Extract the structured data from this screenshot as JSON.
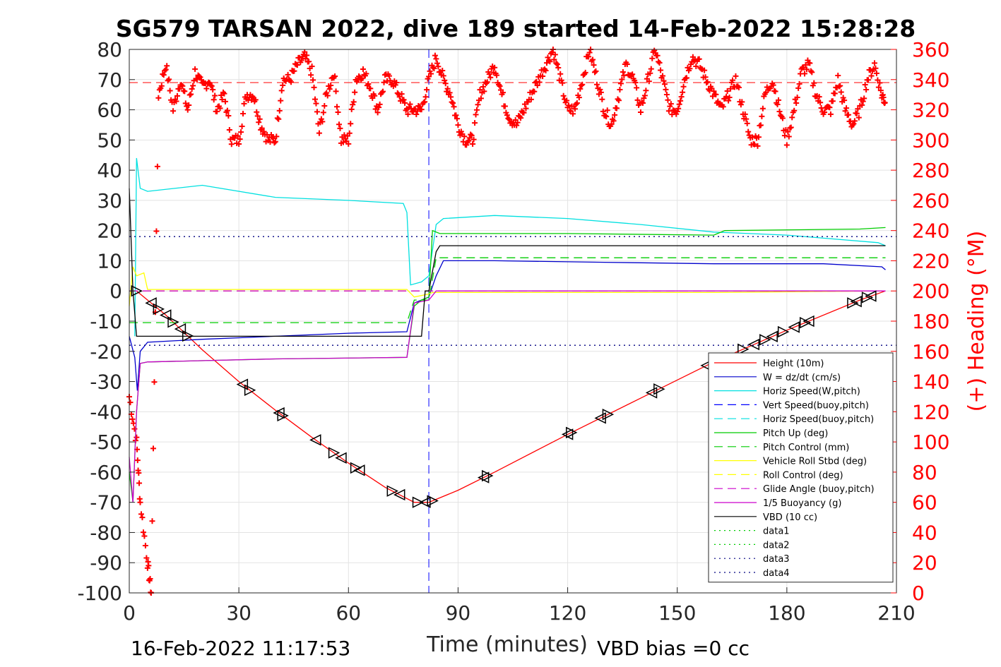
{
  "chart_data": {
    "type": "line",
    "title": "SG579 TARSAN 2022, dive 189 started 14-Feb-2022 15:28:28",
    "xlabel": "Time (minutes)",
    "ylabel_right": "(+) Heading (°M)",
    "xlim": [
      0,
      210
    ],
    "ylim": [
      -100,
      80
    ],
    "ylim_right": [
      0,
      360
    ],
    "xticks": [
      "0",
      "30",
      "60",
      "90",
      "120",
      "150",
      "180",
      "210"
    ],
    "yticks": [
      "80",
      "70",
      "60",
      "50",
      "40",
      "30",
      "20",
      "10",
      "0",
      "-10",
      "-20",
      "-30",
      "-40",
      "-50",
      "-60",
      "-70",
      "-80",
      "-90",
      "-100"
    ],
    "yticks_right": [
      "360",
      "340",
      "320",
      "300",
      "280",
      "260",
      "240",
      "220",
      "200",
      "180",
      "160",
      "140",
      "120",
      "100",
      "80",
      "60",
      "40",
      "20",
      "0"
    ],
    "grid": true,
    "legend_position": "lower-right",
    "footer_left": "16-Feb-2022 11:17:53",
    "footer_right": "VBD bias =0 cc",
    "apogee_time": 82,
    "series": [
      {
        "name": "Height (10m)",
        "color": "#ff0000",
        "style": "solid",
        "x": [
          2,
          10,
          20,
          30,
          40,
          50,
          60,
          70,
          78,
          82,
          90,
          100,
          120,
          140,
          160,
          180,
          200,
          207
        ],
        "y": [
          0,
          -8,
          -19.5,
          -30,
          -39.5,
          -48.5,
          -57,
          -65,
          -70,
          -70,
          -66,
          -60,
          -47.5,
          -35.5,
          -23.5,
          -13,
          -3,
          0
        ]
      },
      {
        "name": "W = dz/dt (cm/s)",
        "color": "#0000cc",
        "style": "solid",
        "x": [
          0,
          1.5,
          2.2,
          3,
          5,
          20,
          40,
          60,
          76,
          78,
          80,
          82,
          84,
          86,
          100,
          130,
          160,
          190,
          206,
          207
        ],
        "y": [
          -15,
          -22,
          -33,
          -20,
          -17,
          -16,
          -15,
          -14,
          -13.5,
          -4,
          -3,
          -2,
          5,
          10,
          10,
          9.5,
          9,
          9,
          8,
          7
        ]
      },
      {
        "name": "Horiz Speed(W,pitch)",
        "color": "#00e0e0",
        "style": "solid",
        "x": [
          1.5,
          2,
          3,
          5,
          20,
          40,
          60,
          75,
          76,
          77,
          80,
          82,
          84,
          86,
          100,
          120,
          140,
          160,
          180,
          205,
          207
        ],
        "y": [
          -15,
          44,
          34,
          33,
          35,
          31,
          30,
          29,
          26,
          2,
          3,
          5,
          22,
          24,
          25,
          24,
          22,
          19.5,
          18.5,
          16,
          15
        ]
      },
      {
        "name": "Vert Speed(buoy,pitch)",
        "color": "#0000ff",
        "style": "dash",
        "x": [],
        "y": []
      },
      {
        "name": "Horiz Speed(buoy,pitch)",
        "color": "#00e0e0",
        "style": "dash",
        "x": [],
        "y": []
      },
      {
        "name": "Pitch Up (deg)",
        "color": "#00cc00",
        "style": "solid",
        "x": [
          0,
          1,
          2,
          3,
          5,
          40,
          76,
          78,
          80,
          82,
          83,
          85,
          120,
          160,
          163,
          200,
          207
        ],
        "y": [
          -60,
          -70,
          -40,
          -24,
          -23.5,
          -22.5,
          -22,
          -5,
          -3,
          -2,
          20,
          19,
          19,
          18.5,
          20,
          20.5,
          21
        ]
      },
      {
        "name": "Pitch Control (mm)",
        "color": "#00cc00",
        "style": "dash",
        "x": [
          0,
          76,
          78,
          82,
          84,
          207
        ],
        "y": [
          -10.5,
          -10.5,
          -3,
          -3,
          11,
          11
        ]
      },
      {
        "name": "Vehicle Roll Stbd (deg)",
        "color": "#ffff00",
        "style": "solid",
        "x": [
          0,
          1,
          2,
          4,
          5,
          30,
          60,
          76,
          78,
          82,
          83,
          120,
          160,
          205,
          207
        ],
        "y": [
          -5,
          8,
          5,
          6,
          0.5,
          0.5,
          0.5,
          0.5,
          -2,
          -1,
          -0.5,
          -0.5,
          -0.5,
          0,
          0
        ]
      },
      {
        "name": "Roll Control (deg)",
        "color": "#ffff00",
        "style": "dash",
        "x": [
          0,
          207
        ],
        "y": [
          0,
          0
        ]
      },
      {
        "name": "Glide Angle (buoy,pitch)",
        "color": "#cc00cc",
        "style": "dash",
        "x": [
          0,
          207
        ],
        "y": [
          0,
          0
        ]
      },
      {
        "name": "1/5 Buoyancy (g)",
        "color": "#cc00cc",
        "style": "solid",
        "x": [
          0,
          1,
          2,
          3,
          5,
          40,
          76,
          78,
          82,
          84,
          207
        ],
        "y": [
          -55,
          -70,
          -40,
          -24,
          -23.5,
          -22.5,
          -22,
          -4,
          -3,
          0,
          0
        ]
      },
      {
        "name": "VBD (10 cc)",
        "color": "#000000",
        "style": "solid",
        "x": [
          0,
          1,
          2,
          80,
          81,
          82,
          84,
          85,
          207
        ],
        "y": [
          34,
          0,
          -15,
          -15,
          0,
          0,
          13,
          15,
          15
        ]
      },
      {
        "name": "data1",
        "color": "#00cc00",
        "style": "dot",
        "x": [],
        "y": []
      },
      {
        "name": "data2",
        "color": "#00cc00",
        "style": "dot",
        "x": [],
        "y": []
      },
      {
        "name": "data3",
        "color": "#000080",
        "style": "dot",
        "x": [
          0,
          210
        ],
        "y": [
          18,
          18
        ]
      },
      {
        "name": "data4",
        "color": "#000080",
        "style": "dot",
        "x": [
          0,
          210
        ],
        "y": [
          -18,
          -18
        ]
      }
    ],
    "heading_reference_deg": 338,
    "heading": {
      "name": "Heading (°M)",
      "color": "#ff0000",
      "x": [
        0,
        2,
        3,
        5,
        6,
        8,
        10,
        12,
        14,
        16,
        18,
        20,
        22,
        24,
        26,
        28,
        30,
        32,
        34,
        36,
        38,
        40,
        42,
        44,
        46,
        48,
        50,
        52,
        54,
        56,
        58,
        60,
        62,
        64,
        66,
        68,
        70,
        72,
        74,
        76,
        78,
        80,
        82,
        84,
        86,
        88,
        90,
        92,
        94,
        96,
        98,
        100,
        102,
        104,
        106,
        108,
        110,
        112,
        114,
        116,
        118,
        120,
        122,
        124,
        126,
        128,
        130,
        132,
        134,
        136,
        138,
        140,
        142,
        144,
        146,
        148,
        150,
        152,
        154,
        156,
        158,
        160,
        162,
        164,
        166,
        168,
        170,
        172,
        174,
        176,
        178,
        180,
        182,
        184,
        186,
        188,
        190,
        192,
        194,
        196,
        198,
        200,
        202,
        204,
        206,
        207
      ],
      "y": [
        130,
        100,
        60,
        20,
        0,
        330,
        350,
        320,
        340,
        320,
        345,
        335,
        340,
        320,
        330,
        300,
        300,
        330,
        330,
        310,
        300,
        300,
        340,
        340,
        350,
        355,
        345,
        305,
        330,
        345,
        300,
        300,
        340,
        345,
        335,
        320,
        340,
        340,
        330,
        320,
        320,
        320,
        340,
        355,
        340,
        330,
        310,
        300,
        300,
        330,
        340,
        350,
        330,
        315,
        310,
        320,
        330,
        340,
        350,
        360,
        340,
        320,
        320,
        340,
        360,
        340,
        320,
        310,
        330,
        350,
        340,
        320,
        340,
        360,
        340,
        320,
        320,
        340,
        355,
        350,
        340,
        330,
        320,
        330,
        340,
        320,
        300,
        300,
        330,
        340,
        320,
        300,
        320,
        345,
        350,
        330,
        320,
        320,
        340,
        320,
        310,
        320,
        340,
        350,
        330,
        325
      ]
    }
  }
}
